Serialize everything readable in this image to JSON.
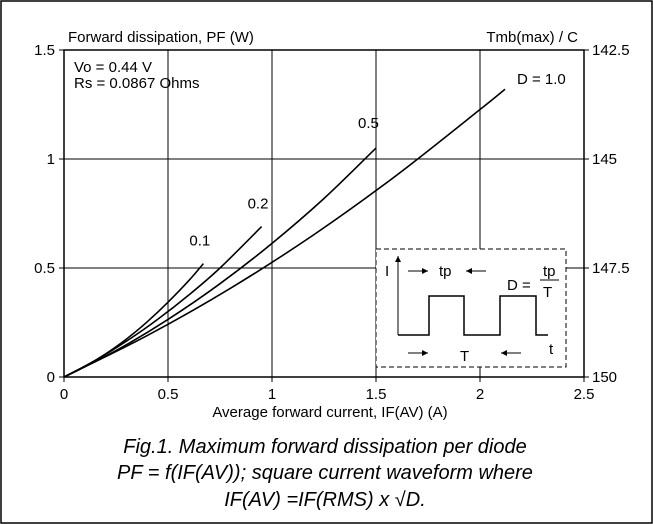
{
  "chart_data": {
    "type": "line",
    "title": "Forward dissipation, PF (W)",
    "right_axis_title": "Tmb(max) / C",
    "xlabel": "Average forward current, IF(AV) (A)",
    "ylabel": "Forward dissipation, PF (W)",
    "xlim": [
      0,
      2.5
    ],
    "ylim": [
      0,
      1.5
    ],
    "x_ticks": [
      "0",
      "0.5",
      "1",
      "1.5",
      "2",
      "2.5"
    ],
    "y_ticks": [
      "0",
      "0.5",
      "1",
      "1.5"
    ],
    "right_ticks": [
      "150",
      "147.5",
      "145",
      "142.5"
    ],
    "grid": true,
    "params": [
      "Vo = 0.44 V",
      "Rs = 0.0867 Ohms"
    ],
    "series": [
      {
        "name": "0.1",
        "x": [
          0,
          0.1,
          0.2,
          0.3,
          0.4,
          0.5,
          0.6,
          0.67
        ],
        "y": [
          0,
          0.048,
          0.106,
          0.174,
          0.253,
          0.343,
          0.442,
          0.52
        ]
      },
      {
        "name": "0.2",
        "x": [
          0,
          0.15,
          0.3,
          0.45,
          0.6,
          0.75,
          0.95
        ],
        "y": [
          0,
          0.076,
          0.164,
          0.264,
          0.376,
          0.5,
          0.69
        ]
      },
      {
        "name": "0.5",
        "x": [
          0,
          0.25,
          0.5,
          0.75,
          1.0,
          1.25,
          1.5
        ],
        "y": [
          0,
          0.121,
          0.264,
          0.428,
          0.613,
          0.819,
          1.05
        ]
      },
      {
        "name": "D = 1.0",
        "x": [
          0,
          0.4,
          0.8,
          1.2,
          1.6,
          2.0,
          2.12
        ],
        "y": [
          0,
          0.19,
          0.407,
          0.652,
          0.926,
          1.227,
          1.32
        ]
      }
    ],
    "inset": {
      "axis_y_label": "I",
      "axis_x_label": "t",
      "tp_label": "tp",
      "period_label": "T",
      "formula_prefix": "D =",
      "formula_num": "tp",
      "formula_den": "T"
    }
  },
  "caption": {
    "line1": "Fig.1.   Maximum forward dissipation per diode",
    "line2": "PF = f(IF(AV)); square current waveform where",
    "line3": "IF(AV) =IF(RMS) x √D."
  }
}
